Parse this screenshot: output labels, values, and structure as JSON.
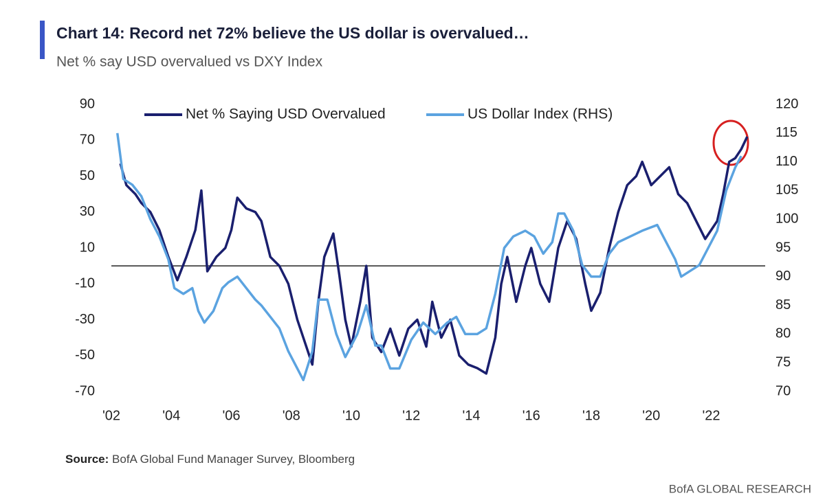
{
  "chart_data": {
    "type": "line",
    "title": "Chart 14: Record net 72% believe the US dollar is overvalued…",
    "subtitle": "Net % say USD overvalued vs DXY Index",
    "source_label": "Source:",
    "source_text": "BofA Global Fund Manager Survey, Bloomberg",
    "footer": "BofA GLOBAL RESEARCH",
    "xlim": [
      2002,
      2023.8
    ],
    "xticks": [
      {
        "value": 2002,
        "label": "'02"
      },
      {
        "value": 2004,
        "label": "'04"
      },
      {
        "value": 2006,
        "label": "'06"
      },
      {
        "value": 2008,
        "label": "'08"
      },
      {
        "value": 2010,
        "label": "'10"
      },
      {
        "value": 2012,
        "label": "'12"
      },
      {
        "value": 2014,
        "label": "'14"
      },
      {
        "value": 2016,
        "label": "'16"
      },
      {
        "value": 2018,
        "label": "'18"
      },
      {
        "value": 2020,
        "label": "'20"
      },
      {
        "value": 2022,
        "label": "'22"
      }
    ],
    "ylim": [
      -70,
      90
    ],
    "yticks": [
      90,
      70,
      50,
      30,
      10,
      -10,
      -30,
      -50,
      -70
    ],
    "y2lim": [
      70,
      120
    ],
    "y2ticks": [
      120,
      115,
      110,
      105,
      100,
      95,
      90,
      85,
      80,
      75,
      70
    ],
    "reference_line": 0,
    "series": [
      {
        "name": "Net % Saying USD Overvalued",
        "color": "#1a1f6e",
        "x": [
          2002.3,
          2002.5,
          2002.8,
          2003.0,
          2003.3,
          2003.6,
          2003.9,
          2004.2,
          2004.5,
          2004.8,
          2005.0,
          2005.2,
          2005.5,
          2005.8,
          2006.0,
          2006.2,
          2006.5,
          2006.8,
          2007.0,
          2007.3,
          2007.6,
          2007.9,
          2008.2,
          2008.5,
          2008.7,
          2008.9,
          2009.1,
          2009.4,
          2009.6,
          2009.8,
          2010.0,
          2010.3,
          2010.5,
          2010.7,
          2011.0,
          2011.3,
          2011.6,
          2011.9,
          2012.2,
          2012.5,
          2012.7,
          2013.0,
          2013.3,
          2013.6,
          2013.9,
          2014.2,
          2014.5,
          2014.8,
          2015.0,
          2015.2,
          2015.5,
          2015.8,
          2016.0,
          2016.3,
          2016.6,
          2016.9,
          2017.2,
          2017.5,
          2017.8,
          2018.0,
          2018.3,
          2018.6,
          2018.9,
          2019.2,
          2019.5,
          2019.7,
          2020.0,
          2020.3,
          2020.6,
          2020.9,
          2021.2,
          2021.5,
          2021.8,
          2022.0,
          2022.2,
          2022.4,
          2022.6,
          2022.8,
          2023.0,
          2023.2
        ],
        "values": [
          57,
          45,
          40,
          35,
          30,
          20,
          5,
          -8,
          5,
          20,
          42,
          -3,
          5,
          10,
          20,
          38,
          32,
          30,
          25,
          5,
          0,
          -10,
          -30,
          -45,
          -55,
          -20,
          5,
          18,
          -5,
          -30,
          -45,
          -20,
          0,
          -40,
          -48,
          -35,
          -50,
          -35,
          -30,
          -45,
          -20,
          -40,
          -30,
          -50,
          -55,
          -57,
          -60,
          -40,
          -10,
          5,
          -20,
          0,
          10,
          -10,
          -20,
          10,
          25,
          15,
          -10,
          -25,
          -15,
          10,
          30,
          45,
          50,
          58,
          45,
          50,
          55,
          40,
          35,
          25,
          15,
          20,
          25,
          40,
          58,
          60,
          65,
          72
        ]
      },
      {
        "name": "US Dollar Index (RHS)",
        "color": "#5ba3e0",
        "axis": "y2",
        "x": [
          2002.2,
          2002.4,
          2002.7,
          2003.0,
          2003.3,
          2003.6,
          2003.9,
          2004.1,
          2004.4,
          2004.7,
          2004.9,
          2005.1,
          2005.4,
          2005.7,
          2005.9,
          2006.2,
          2006.5,
          2006.8,
          2007.0,
          2007.3,
          2007.6,
          2007.9,
          2008.2,
          2008.4,
          2008.7,
          2008.9,
          2009.2,
          2009.5,
          2009.8,
          2010.2,
          2010.5,
          2010.8,
          2011.0,
          2011.3,
          2011.6,
          2012.0,
          2012.4,
          2012.8,
          2013.2,
          2013.5,
          2013.8,
          2014.2,
          2014.5,
          2014.8,
          2015.1,
          2015.4,
          2015.8,
          2016.1,
          2016.4,
          2016.7,
          2016.9,
          2017.1,
          2017.4,
          2017.7,
          2018.0,
          2018.3,
          2018.6,
          2018.9,
          2019.3,
          2019.7,
          2020.2,
          2020.5,
          2020.8,
          2021.0,
          2021.3,
          2021.6,
          2021.9,
          2022.2,
          2022.5,
          2022.8,
          2023.0
        ],
        "values": [
          115,
          107,
          106,
          104,
          100,
          97,
          93,
          88,
          87,
          88,
          84,
          82,
          84,
          88,
          89,
          90,
          88,
          86,
          85,
          83,
          81,
          77,
          74,
          72,
          77,
          86,
          86,
          80,
          76,
          80,
          85,
          78,
          78,
          74,
          74,
          79,
          82,
          80,
          82,
          83,
          80,
          80,
          81,
          87,
          95,
          97,
          98,
          97,
          94,
          96,
          101,
          101,
          98,
          92,
          90,
          90,
          94,
          96,
          97,
          98,
          99,
          96,
          93,
          90,
          91,
          92,
          95,
          98,
          105,
          109,
          111
        ]
      }
    ]
  }
}
